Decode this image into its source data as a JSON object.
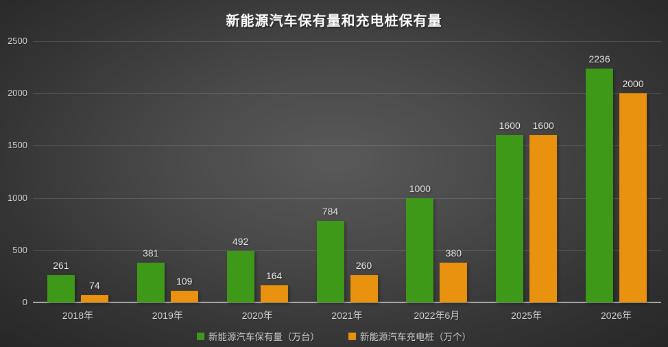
{
  "page": {
    "title": "新能源汽车保有量和充电桩保有量"
  },
  "chart_data": {
    "type": "bar",
    "title": "新能源汽车保有量和充电桩保有量",
    "categories": [
      "2018年",
      "2019年",
      "2020年",
      "2021年",
      "2022年6月",
      "2025年",
      "2026年"
    ],
    "series": [
      {
        "name": "新能源汽车保有量（万台）",
        "color": "#3F9918",
        "values": [
          261,
          381,
          492,
          784,
          1000,
          1600,
          2236
        ]
      },
      {
        "name": "新能源汽车充电桩（万个）",
        "color": "#E8920F",
        "values": [
          74,
          109,
          164,
          260,
          380,
          1600,
          2000
        ]
      }
    ],
    "ylim": [
      0,
      2500
    ],
    "yticks": [
      0,
      500,
      1000,
      1500,
      2000,
      2500
    ],
    "grid": true,
    "legend_position": "bottom",
    "value_labels": true
  }
}
